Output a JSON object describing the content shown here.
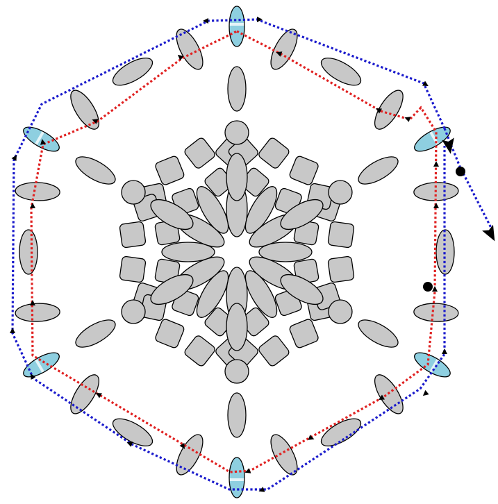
{
  "diagram": {
    "kind": "hexagonal-array-with-two-dotted-paths",
    "colors": {
      "background": "#ffffff",
      "shape_fill": "#c8c8c8",
      "shape_stroke": "#000000",
      "highlight_fill": "#8ecfe0",
      "highlight_stripe": "#e4f4f8",
      "inner_path": "#e02222",
      "outer_path": "#1a1acc",
      "markers": "#000000"
    },
    "counts": {
      "square_rings": 3,
      "outer_ellipses": 18,
      "highlighted_ellipses": 6,
      "inner_petals": 24,
      "circles": 6
    },
    "paths": [
      {
        "name": "inner",
        "color": "#e02222",
        "style": "dotted",
        "arrowheads": true
      },
      {
        "name": "outer",
        "color": "#1a1acc",
        "style": "dotted",
        "arrowheads": true
      }
    ],
    "markers": [
      {
        "type": "dot"
      },
      {
        "type": "dot"
      }
    ]
  }
}
